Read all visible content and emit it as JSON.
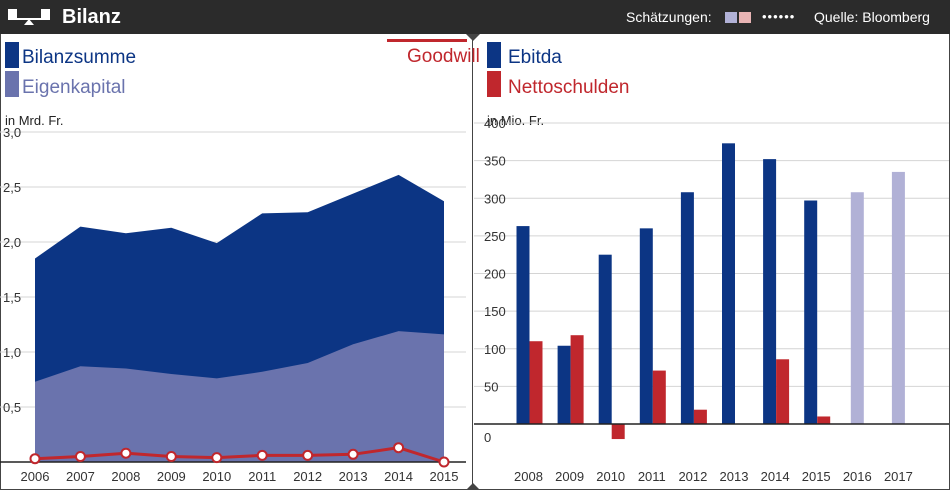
{
  "header": {
    "title": "Bilanz",
    "estimates_label": "Schätzungen:",
    "dots": "••••••",
    "source": "Quelle: Bloomberg"
  },
  "colors": {
    "dark_blue": "#0c3584",
    "light_blue": "#6a73ad",
    "red": "#c0272d",
    "est_blue": "#b1b1d6",
    "est_red": "#e8b4b4",
    "header_bg": "#2b2b2b"
  },
  "chart_data": [
    {
      "type": "area",
      "legend": {
        "bilanzsumme": "Bilanzsumme",
        "eigenkapital": "Eigenkapital",
        "goodwill": "Goodwill"
      },
      "unit": "in Mrd. Fr.",
      "x": [
        "2006",
        "2007",
        "2008",
        "2009",
        "2010",
        "2011",
        "2012",
        "2013",
        "2014",
        "2015"
      ],
      "yticks": [
        "3,0",
        "2,5",
        "2,0",
        "1,5",
        "1,0",
        "0,5"
      ],
      "ylim": [
        0,
        3.0
      ],
      "series": [
        {
          "name": "Bilanzsumme",
          "values": [
            1.85,
            2.14,
            2.08,
            2.13,
            1.99,
            2.26,
            2.27,
            2.44,
            2.61,
            2.37
          ]
        },
        {
          "name": "Eigenkapital",
          "values": [
            0.73,
            0.87,
            0.85,
            0.8,
            0.76,
            0.82,
            0.9,
            1.07,
            1.19,
            1.16
          ]
        },
        {
          "name": "Goodwill",
          "values": [
            0.03,
            0.05,
            0.08,
            0.05,
            0.04,
            0.06,
            0.06,
            0.07,
            0.13,
            0.0
          ]
        }
      ]
    },
    {
      "type": "bar",
      "legend": {
        "ebitda": "Ebitda",
        "nettoschulden": "Nettoschulden"
      },
      "unit": "in Mio. Fr.",
      "categories": [
        "2008",
        "2009",
        "2010",
        "2011",
        "2012",
        "2013",
        "2014",
        "2015",
        "2016",
        "2017"
      ],
      "yticks": [
        "400",
        "350",
        "300",
        "250",
        "200",
        "150",
        "100",
        "50",
        "0"
      ],
      "ylim": [
        -20,
        420
      ],
      "series": [
        {
          "name": "Ebitda",
          "values": [
            263,
            104,
            225,
            260,
            308,
            373,
            352,
            297,
            308,
            335
          ]
        },
        {
          "name": "Nettoschulden",
          "values": [
            110,
            118,
            -20,
            71,
            19,
            null,
            86,
            10,
            null,
            null
          ]
        }
      ],
      "estimates": [
        "2016",
        "2017"
      ]
    }
  ]
}
